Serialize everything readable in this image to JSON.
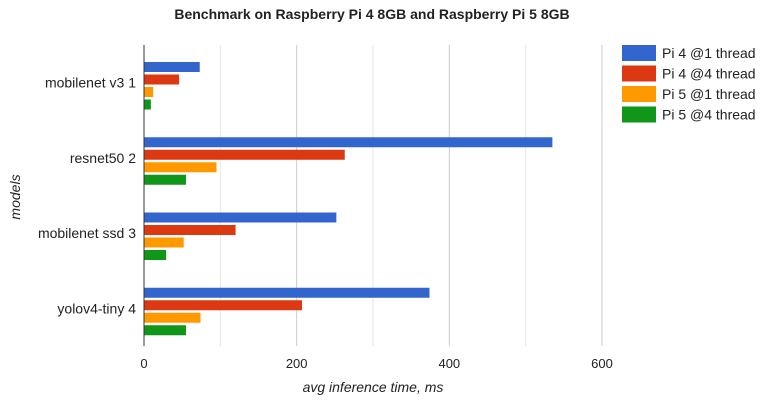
{
  "chart_data": {
    "type": "bar",
    "orientation": "horizontal",
    "title": "Benchmark on Raspberry Pi 4 8GB and Raspberry Pi 5 8GB",
    "xlabel": "avg inference time, ms",
    "ylabel": "models",
    "categories": [
      "mobilenet v3 1",
      "resnet50 2",
      "mobilenet ssd 3",
      "yolov4-tiny 4"
    ],
    "xlim": [
      0,
      600
    ],
    "xticks": [
      0,
      200,
      400,
      600
    ],
    "grid": true,
    "legend_position": "right",
    "series": [
      {
        "name": "Pi 4 @1 thread",
        "color": "#3366cc",
        "values": [
          73,
          535,
          252,
          374
        ]
      },
      {
        "name": "Pi 4 @4 thread",
        "color": "#dc3912",
        "values": [
          46,
          263,
          120,
          207
        ]
      },
      {
        "name": "Pi 5 @1 thread",
        "color": "#ff9900",
        "values": [
          12,
          95,
          52,
          74
        ]
      },
      {
        "name": "Pi 5 @4 thread",
        "color": "#109618",
        "values": [
          9,
          55,
          29,
          55
        ]
      }
    ]
  }
}
